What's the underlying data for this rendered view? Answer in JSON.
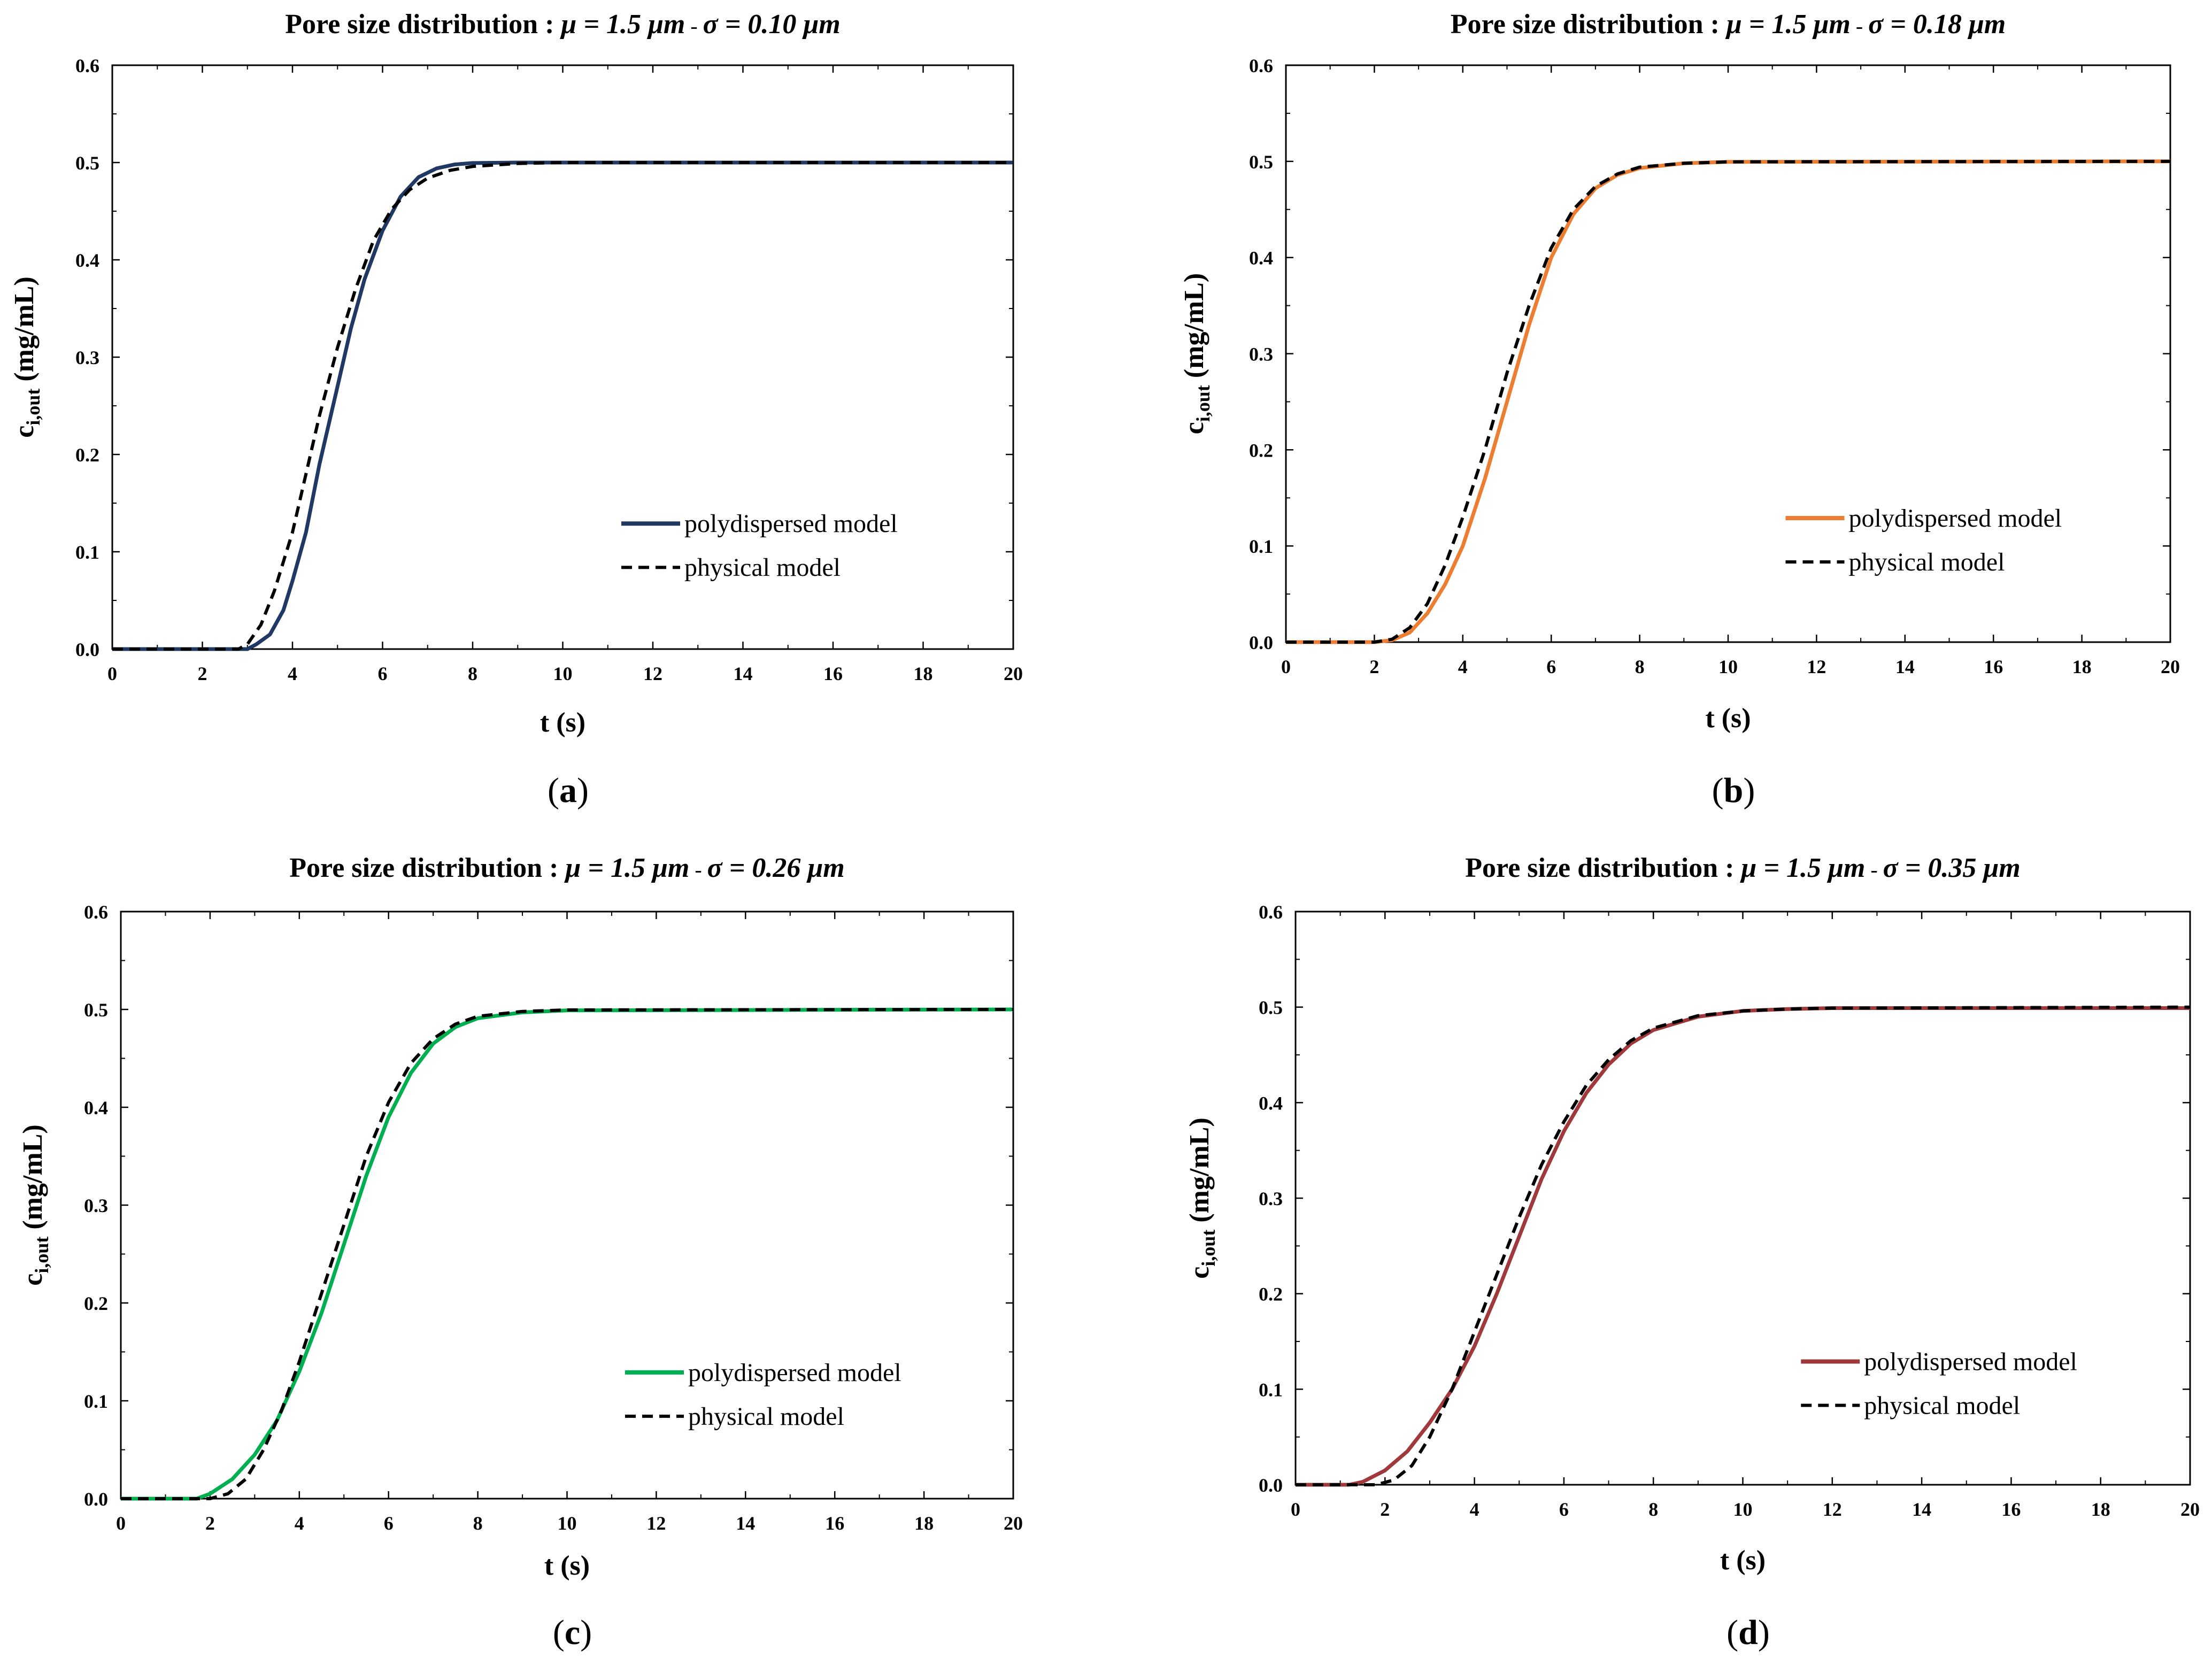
{
  "chart_data": [
    {
      "type": "line",
      "panel_label": "a",
      "title_prefix": "Pore size distribution  : ",
      "title_mu": "μ = 1.5 μm",
      "title_sep": " - ",
      "title_sigma": "σ = 0.10 μm",
      "xlabel": "t (s)",
      "ylabel_main": "c",
      "ylabel_sub": "i,out",
      "ylabel_rest": " (mg/mL)",
      "xlim": [
        0,
        20
      ],
      "ylim": [
        0,
        0.6
      ],
      "xticks": [
        "0",
        "2",
        "4",
        "6",
        "8",
        "10",
        "12",
        "14",
        "16",
        "18",
        "20"
      ],
      "yticks": [
        "0.0",
        "0.1",
        "0.2",
        "0.3",
        "0.4",
        "0.5",
        "0.6"
      ],
      "legend_position": "lower-right",
      "series": [
        {
          "name": "polydispersed model",
          "color": "#1f3864",
          "dash": false,
          "points": [
            [
              0,
              0
            ],
            [
              2.5,
              0
            ],
            [
              3.0,
              0.0
            ],
            [
              3.2,
              0.005
            ],
            [
              3.5,
              0.015
            ],
            [
              3.8,
              0.04
            ],
            [
              4.0,
              0.07
            ],
            [
              4.3,
              0.12
            ],
            [
              4.6,
              0.19
            ],
            [
              5.0,
              0.27
            ],
            [
              5.3,
              0.33
            ],
            [
              5.6,
              0.38
            ],
            [
              6.0,
              0.43
            ],
            [
              6.4,
              0.465
            ],
            [
              6.8,
              0.485
            ],
            [
              7.2,
              0.494
            ],
            [
              7.6,
              0.498
            ],
            [
              8.0,
              0.4995
            ],
            [
              9,
              0.5
            ],
            [
              20,
              0.5
            ]
          ]
        },
        {
          "name": "physical model",
          "color": "#000000",
          "dash": true,
          "points": [
            [
              0,
              0
            ],
            [
              2.8,
              0
            ],
            [
              3.0,
              0.005
            ],
            [
              3.3,
              0.025
            ],
            [
              3.6,
              0.06
            ],
            [
              4.0,
              0.12
            ],
            [
              4.3,
              0.18
            ],
            [
              4.6,
              0.24
            ],
            [
              5.0,
              0.31
            ],
            [
              5.4,
              0.37
            ],
            [
              5.8,
              0.42
            ],
            [
              6.2,
              0.452
            ],
            [
              6.6,
              0.472
            ],
            [
              7.0,
              0.484
            ],
            [
              7.5,
              0.492
            ],
            [
              8.0,
              0.496
            ],
            [
              9.0,
              0.499
            ],
            [
              10,
              0.5
            ],
            [
              20,
              0.5
            ]
          ]
        }
      ]
    },
    {
      "type": "line",
      "panel_label": "b",
      "title_prefix": "Pore size distribution  : ",
      "title_mu": "μ = 1.5 μm",
      "title_sep": " - ",
      "title_sigma": "σ = 0.18 μm",
      "xlabel": "t (s)",
      "ylabel_main": "c",
      "ylabel_sub": "i,out",
      "ylabel_rest": " (mg/mL)",
      "xlim": [
        0,
        20
      ],
      "ylim": [
        0,
        0.6
      ],
      "xticks": [
        "0",
        "2",
        "4",
        "6",
        "8",
        "10",
        "12",
        "14",
        "16",
        "18",
        "20"
      ],
      "yticks": [
        "0.0",
        "0.1",
        "0.2",
        "0.3",
        "0.4",
        "0.5",
        "0.6"
      ],
      "legend_position": "lower-right",
      "series": [
        {
          "name": "polydispersed model",
          "color": "#ed7d31",
          "dash": false,
          "points": [
            [
              0,
              0
            ],
            [
              2.0,
              0
            ],
            [
              2.4,
              0.002
            ],
            [
              2.8,
              0.01
            ],
            [
              3.2,
              0.03
            ],
            [
              3.6,
              0.06
            ],
            [
              4.0,
              0.1
            ],
            [
              4.5,
              0.17
            ],
            [
              5.0,
              0.25
            ],
            [
              5.5,
              0.33
            ],
            [
              6.0,
              0.4
            ],
            [
              6.5,
              0.445
            ],
            [
              7.0,
              0.472
            ],
            [
              7.5,
              0.486
            ],
            [
              8.0,
              0.493
            ],
            [
              9.0,
              0.498
            ],
            [
              10,
              0.4995
            ],
            [
              20,
              0.5
            ]
          ]
        },
        {
          "name": "physical model",
          "color": "#000000",
          "dash": true,
          "points": [
            [
              0,
              0
            ],
            [
              2.0,
              0
            ],
            [
              2.4,
              0.003
            ],
            [
              2.8,
              0.015
            ],
            [
              3.2,
              0.04
            ],
            [
              3.6,
              0.08
            ],
            [
              4.0,
              0.13
            ],
            [
              4.5,
              0.2
            ],
            [
              5.0,
              0.28
            ],
            [
              5.5,
              0.35
            ],
            [
              6.0,
              0.41
            ],
            [
              6.5,
              0.45
            ],
            [
              7.0,
              0.474
            ],
            [
              7.5,
              0.487
            ],
            [
              8.0,
              0.494
            ],
            [
              9.0,
              0.498
            ],
            [
              10,
              0.4995
            ],
            [
              20,
              0.5
            ]
          ]
        }
      ]
    },
    {
      "type": "line",
      "panel_label": "c",
      "title_prefix": "Pore size distribution  : ",
      "title_mu": "μ = 1.5 μm",
      "title_sep": " - ",
      "title_sigma": "σ = 0.26 μm",
      "xlabel": "t (s)",
      "ylabel_main": "c",
      "ylabel_sub": "i,out",
      "ylabel_rest": " (mg/mL)",
      "xlim": [
        0,
        20
      ],
      "ylim": [
        0,
        0.6
      ],
      "xticks": [
        "0",
        "2",
        "4",
        "6",
        "8",
        "10",
        "12",
        "14",
        "16",
        "18",
        "20"
      ],
      "yticks": [
        "0.0",
        "0.1",
        "0.2",
        "0.3",
        "0.4",
        "0.5",
        "0.6"
      ],
      "legend_position": "lower-right",
      "series": [
        {
          "name": "polydispersed model",
          "color": "#00b050",
          "dash": false,
          "points": [
            [
              0,
              0
            ],
            [
              1.7,
              0
            ],
            [
              2.0,
              0.005
            ],
            [
              2.5,
              0.02
            ],
            [
              3.0,
              0.045
            ],
            [
              3.5,
              0.08
            ],
            [
              4.0,
              0.13
            ],
            [
              4.5,
              0.19
            ],
            [
              5.0,
              0.26
            ],
            [
              5.5,
              0.33
            ],
            [
              6.0,
              0.39
            ],
            [
              6.5,
              0.435
            ],
            [
              7.0,
              0.465
            ],
            [
              7.5,
              0.482
            ],
            [
              8.0,
              0.491
            ],
            [
              9.0,
              0.497
            ],
            [
              10,
              0.499
            ],
            [
              20,
              0.5
            ]
          ]
        },
        {
          "name": "physical model",
          "color": "#000000",
          "dash": true,
          "points": [
            [
              0,
              0
            ],
            [
              2.0,
              0
            ],
            [
              2.4,
              0.005
            ],
            [
              2.8,
              0.02
            ],
            [
              3.2,
              0.05
            ],
            [
              3.6,
              0.09
            ],
            [
              4.0,
              0.14
            ],
            [
              4.5,
              0.21
            ],
            [
              5.0,
              0.28
            ],
            [
              5.5,
              0.35
            ],
            [
              6.0,
              0.405
            ],
            [
              6.5,
              0.445
            ],
            [
              7.0,
              0.47
            ],
            [
              7.5,
              0.485
            ],
            [
              8.0,
              0.493
            ],
            [
              9.0,
              0.498
            ],
            [
              10,
              0.4995
            ],
            [
              20,
              0.5
            ]
          ]
        }
      ]
    },
    {
      "type": "line",
      "panel_label": "d",
      "title_prefix": "Pore size distribution  : ",
      "title_mu": "μ = 1.5 μm",
      "title_sep": " - ",
      "title_sigma": "σ = 0.35 μm",
      "xlabel": "t (s)",
      "ylabel_main": "c",
      "ylabel_sub": "i,out",
      "ylabel_rest": " (mg/mL)",
      "xlim": [
        0,
        20
      ],
      "ylim": [
        0,
        0.6
      ],
      "xticks": [
        "0",
        "2",
        "4",
        "6",
        "8",
        "10",
        "12",
        "14",
        "16",
        "18",
        "20"
      ],
      "yticks": [
        "0.0",
        "0.1",
        "0.2",
        "0.3",
        "0.4",
        "0.5",
        "0.6"
      ],
      "legend_position": "lower-right",
      "series": [
        {
          "name": "polydispersed model",
          "color": "#a0393c",
          "dash": false,
          "points": [
            [
              0,
              0
            ],
            [
              1.2,
              0
            ],
            [
              1.5,
              0.003
            ],
            [
              2.0,
              0.015
            ],
            [
              2.5,
              0.035
            ],
            [
              3.0,
              0.065
            ],
            [
              3.5,
              0.1
            ],
            [
              4.0,
              0.145
            ],
            [
              4.5,
              0.2
            ],
            [
              5.0,
              0.26
            ],
            [
              5.5,
              0.32
            ],
            [
              6.0,
              0.37
            ],
            [
              6.5,
              0.41
            ],
            [
              7.0,
              0.44
            ],
            [
              7.5,
              0.462
            ],
            [
              8.0,
              0.476
            ],
            [
              9.0,
              0.49
            ],
            [
              10,
              0.496
            ],
            [
              11,
              0.498
            ],
            [
              12,
              0.499
            ],
            [
              20,
              0.499
            ]
          ]
        },
        {
          "name": "physical model",
          "color": "#000000",
          "dash": true,
          "points": [
            [
              0,
              0
            ],
            [
              1.8,
              0
            ],
            [
              2.2,
              0.005
            ],
            [
              2.6,
              0.02
            ],
            [
              3.0,
              0.05
            ],
            [
              3.5,
              0.1
            ],
            [
              4.0,
              0.16
            ],
            [
              4.5,
              0.22
            ],
            [
              5.0,
              0.28
            ],
            [
              5.5,
              0.335
            ],
            [
              6.0,
              0.38
            ],
            [
              6.5,
              0.418
            ],
            [
              7.0,
              0.445
            ],
            [
              7.5,
              0.465
            ],
            [
              8.0,
              0.478
            ],
            [
              9.0,
              0.491
            ],
            [
              10,
              0.496
            ],
            [
              11,
              0.498
            ],
            [
              12,
              0.499
            ],
            [
              20,
              0.5
            ]
          ]
        }
      ]
    }
  ]
}
